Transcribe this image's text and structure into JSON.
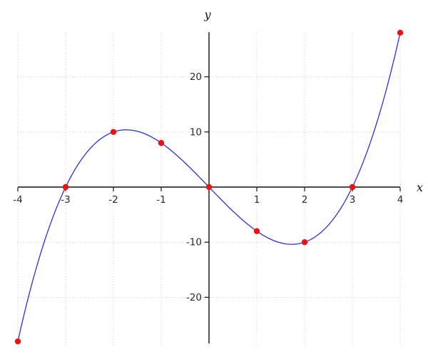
{
  "chart_data": {
    "type": "line",
    "title": "",
    "xlabel": "x",
    "ylabel": "y",
    "x_range": [
      -4,
      4
    ],
    "y_range": [
      -29,
      28.5
    ],
    "x_ticks": [
      -4,
      -3,
      -2,
      -1,
      1,
      2,
      3,
      4
    ],
    "y_ticks": [
      -20,
      -10,
      10,
      20
    ],
    "legend": "none",
    "grid": {
      "style": "dotted",
      "color": "#c5c5c5",
      "x_lines": [
        -4,
        -3,
        -2,
        -1,
        0,
        1,
        2,
        3,
        4
      ],
      "y_lines": [
        -20,
        -10,
        10,
        20
      ]
    },
    "axes": {
      "color": "#111111",
      "tick_color": "#111111"
    },
    "curve": {
      "description": "cubic polynomial through the marked points",
      "poly_coefficients_desc_powers": [
        1,
        0,
        -9,
        0
      ],
      "domain": [
        -4,
        4
      ],
      "color": "#3030dd",
      "stroke_width": 1.3
    },
    "markers": {
      "color": "#ee1111",
      "radius": 4.2,
      "points": [
        [
          -4,
          -28
        ],
        [
          -3,
          0
        ],
        [
          -2,
          10
        ],
        [
          -1,
          8
        ],
        [
          0,
          0
        ],
        [
          1,
          -8
        ],
        [
          2,
          -10
        ],
        [
          3,
          0
        ],
        [
          4,
          28
        ]
      ]
    }
  }
}
